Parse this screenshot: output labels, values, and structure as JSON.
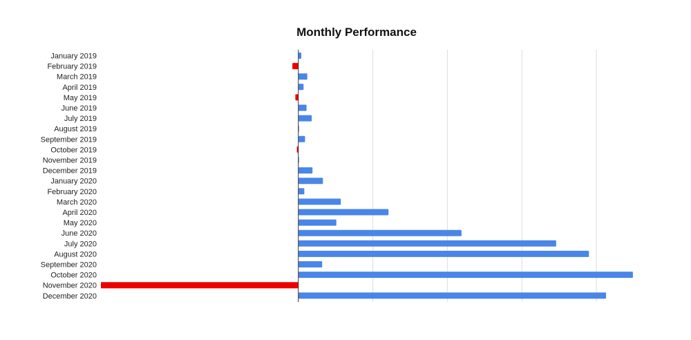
{
  "chart_data": {
    "type": "bar",
    "orientation": "horizontal",
    "title": "Monthly Performance",
    "xlabel": "",
    "ylabel": "",
    "categories": [
      "January 2019",
      "February 2019",
      "March 2019",
      "April 2019",
      "May 2019",
      "June 2019",
      "July 2019",
      "August 2019",
      "September 2019",
      "October 2019",
      "November 2019",
      "December 2019",
      "January 2020",
      "February 2020",
      "March 2020",
      "April 2020",
      "May 2020",
      "June 2020",
      "July 2020",
      "August 2020",
      "September 2020",
      "October 2020",
      "November 2020",
      "December 2020"
    ],
    "values": [
      0.04,
      -0.08,
      0.12,
      0.07,
      -0.04,
      0.11,
      0.18,
      0.01,
      0.09,
      -0.02,
      0.01,
      0.19,
      0.33,
      0.08,
      0.57,
      1.21,
      0.51,
      2.19,
      3.46,
      3.9,
      0.32,
      4.49,
      -2.65,
      4.13
    ],
    "xlim": [
      -2.65,
      4.5
    ],
    "x_gridlines": [
      0,
      1,
      2,
      3,
      4
    ],
    "grid": true,
    "colors": {
      "positive": "#4a86e8",
      "negative": "#ee0000",
      "grid": "#dddddd",
      "axis": "#333333"
    }
  }
}
